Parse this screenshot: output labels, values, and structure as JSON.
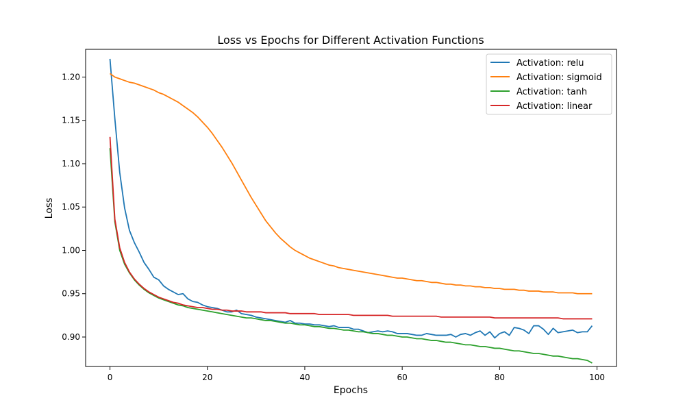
{
  "chart_data": {
    "type": "line",
    "title": "Loss vs Epochs for Different Activation Functions",
    "xlabel": "Epochs",
    "ylabel": "Loss",
    "xlim": [
      -5,
      104
    ],
    "ylim": [
      0.866,
      1.232
    ],
    "xticks": [
      0,
      20,
      40,
      60,
      80,
      100
    ],
    "xtick_labels": [
      "0",
      "20",
      "40",
      "60",
      "80",
      "100"
    ],
    "yticks": [
      0.9,
      0.95,
      1.0,
      1.05,
      1.1,
      1.15,
      1.2
    ],
    "ytick_labels": [
      "0.90",
      "0.95",
      "1.00",
      "1.05",
      "1.10",
      "1.15",
      "1.20"
    ],
    "grid": false,
    "legend_position": "top-right",
    "x_range": [
      0,
      99
    ],
    "series": [
      {
        "name": "Activation: relu",
        "color": "#1f77b4",
        "values": [
          1.221,
          1.152,
          1.09,
          1.049,
          1.023,
          1.009,
          0.998,
          0.986,
          0.978,
          0.969,
          0.966,
          0.959,
          0.955,
          0.952,
          0.949,
          0.95,
          0.944,
          0.941,
          0.94,
          0.937,
          0.935,
          0.934,
          0.933,
          0.931,
          0.929,
          0.929,
          0.931,
          0.927,
          0.926,
          0.925,
          0.923,
          0.922,
          0.921,
          0.92,
          0.919,
          0.918,
          0.917,
          0.919,
          0.916,
          0.916,
          0.915,
          0.915,
          0.914,
          0.914,
          0.913,
          0.912,
          0.913,
          0.911,
          0.911,
          0.911,
          0.909,
          0.909,
          0.907,
          0.905,
          0.906,
          0.907,
          0.906,
          0.907,
          0.906,
          0.904,
          0.904,
          0.904,
          0.903,
          0.902,
          0.902,
          0.904,
          0.903,
          0.902,
          0.902,
          0.902,
          0.903,
          0.9,
          0.903,
          0.904,
          0.902,
          0.905,
          0.907,
          0.902,
          0.906,
          0.899,
          0.904,
          0.906,
          0.902,
          0.911,
          0.91,
          0.908,
          0.904,
          0.913,
          0.913,
          0.909,
          0.903,
          0.91,
          0.905,
          0.906,
          0.907,
          0.908,
          0.905,
          0.906,
          0.906,
          0.913
        ]
      },
      {
        "name": "Activation: sigmoid",
        "color": "#ff7f0e",
        "values": [
          1.204,
          1.2,
          1.198,
          1.196,
          1.194,
          1.193,
          1.191,
          1.189,
          1.187,
          1.185,
          1.182,
          1.18,
          1.177,
          1.174,
          1.171,
          1.167,
          1.163,
          1.159,
          1.154,
          1.148,
          1.142,
          1.135,
          1.127,
          1.119,
          1.11,
          1.101,
          1.091,
          1.081,
          1.071,
          1.061,
          1.052,
          1.043,
          1.034,
          1.027,
          1.02,
          1.014,
          1.009,
          1.004,
          1.0,
          0.997,
          0.994,
          0.991,
          0.989,
          0.987,
          0.985,
          0.983,
          0.982,
          0.98,
          0.979,
          0.978,
          0.977,
          0.976,
          0.975,
          0.974,
          0.973,
          0.972,
          0.971,
          0.97,
          0.969,
          0.968,
          0.968,
          0.967,
          0.966,
          0.965,
          0.965,
          0.964,
          0.963,
          0.963,
          0.962,
          0.961,
          0.961,
          0.96,
          0.96,
          0.959,
          0.959,
          0.958,
          0.958,
          0.957,
          0.957,
          0.956,
          0.956,
          0.955,
          0.955,
          0.955,
          0.954,
          0.954,
          0.953,
          0.953,
          0.953,
          0.952,
          0.952,
          0.952,
          0.951,
          0.951,
          0.951,
          0.951,
          0.95,
          0.95,
          0.95,
          0.95
        ]
      },
      {
        "name": "Activation: tanh",
        "color": "#2ca02c",
        "values": [
          1.118,
          1.033,
          1.0,
          0.984,
          0.974,
          0.966,
          0.96,
          0.955,
          0.951,
          0.948,
          0.945,
          0.943,
          0.941,
          0.939,
          0.937,
          0.936,
          0.934,
          0.933,
          0.932,
          0.931,
          0.93,
          0.929,
          0.928,
          0.927,
          0.926,
          0.925,
          0.924,
          0.923,
          0.922,
          0.922,
          0.921,
          0.92,
          0.919,
          0.919,
          0.918,
          0.917,
          0.916,
          0.916,
          0.915,
          0.914,
          0.914,
          0.913,
          0.912,
          0.912,
          0.911,
          0.91,
          0.91,
          0.909,
          0.908,
          0.908,
          0.907,
          0.906,
          0.906,
          0.905,
          0.904,
          0.904,
          0.903,
          0.902,
          0.902,
          0.901,
          0.9,
          0.9,
          0.899,
          0.898,
          0.898,
          0.897,
          0.896,
          0.896,
          0.895,
          0.894,
          0.894,
          0.893,
          0.892,
          0.891,
          0.891,
          0.89,
          0.889,
          0.889,
          0.888,
          0.887,
          0.887,
          0.886,
          0.885,
          0.884,
          0.884,
          0.883,
          0.882,
          0.881,
          0.881,
          0.88,
          0.879,
          0.878,
          0.878,
          0.877,
          0.876,
          0.875,
          0.875,
          0.874,
          0.873,
          0.87
        ]
      },
      {
        "name": "Activation: linear",
        "color": "#d62728",
        "values": [
          1.131,
          1.036,
          1.003,
          0.986,
          0.975,
          0.967,
          0.961,
          0.956,
          0.952,
          0.949,
          0.946,
          0.944,
          0.942,
          0.94,
          0.939,
          0.937,
          0.936,
          0.935,
          0.934,
          0.934,
          0.933,
          0.932,
          0.932,
          0.931,
          0.931,
          0.93,
          0.93,
          0.93,
          0.929,
          0.929,
          0.929,
          0.929,
          0.928,
          0.928,
          0.928,
          0.928,
          0.928,
          0.927,
          0.927,
          0.927,
          0.927,
          0.927,
          0.927,
          0.926,
          0.926,
          0.926,
          0.926,
          0.926,
          0.926,
          0.926,
          0.925,
          0.925,
          0.925,
          0.925,
          0.925,
          0.925,
          0.925,
          0.925,
          0.924,
          0.924,
          0.924,
          0.924,
          0.924,
          0.924,
          0.924,
          0.924,
          0.924,
          0.924,
          0.923,
          0.923,
          0.923,
          0.923,
          0.923,
          0.923,
          0.923,
          0.923,
          0.923,
          0.923,
          0.923,
          0.922,
          0.922,
          0.922,
          0.922,
          0.922,
          0.922,
          0.922,
          0.922,
          0.922,
          0.922,
          0.922,
          0.922,
          0.922,
          0.922,
          0.921,
          0.921,
          0.921,
          0.921,
          0.921,
          0.921,
          0.921
        ]
      }
    ]
  }
}
